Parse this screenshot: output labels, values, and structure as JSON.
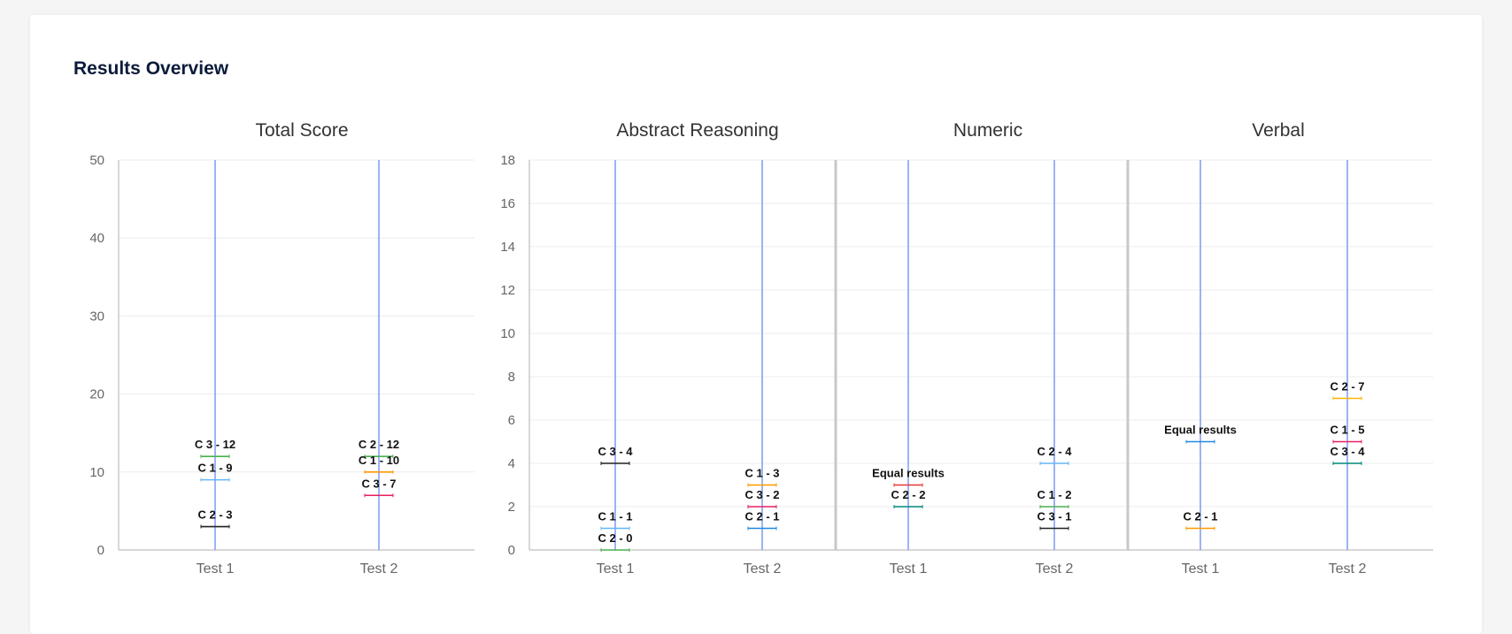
{
  "page": {
    "title": "Results Overview"
  },
  "chart_data": [
    {
      "id": "total",
      "type": "scatter",
      "title": "Total Score",
      "categories": [
        "Test 1",
        "Test 2"
      ],
      "ylim": [
        0,
        50
      ],
      "yticks": [
        0,
        10,
        20,
        30,
        40,
        50
      ],
      "grid": true,
      "points": [
        {
          "x": "Test 1",
          "y": 12,
          "label": "C 3 - 12",
          "color": "#4caf50"
        },
        {
          "x": "Test 1",
          "y": 9,
          "label": "C 1 - 9",
          "color": "#64b5f6"
        },
        {
          "x": "Test 1",
          "y": 3,
          "label": "C 2 - 3",
          "color": "#212121"
        },
        {
          "x": "Test 2",
          "y": 12,
          "label": "C 2 - 12",
          "color": "#4caf50"
        },
        {
          "x": "Test 2",
          "y": 10,
          "label": "C 1 - 10",
          "color": "#ff9800"
        },
        {
          "x": "Test 2",
          "y": 7,
          "label": "C 3 - 7",
          "color": "#e91e63"
        }
      ]
    },
    {
      "id": "abstract",
      "type": "scatter",
      "title": "Abstract Reasoning",
      "categories": [
        "Test 1",
        "Test 2"
      ],
      "ylim": [
        0,
        18
      ],
      "yticks": [
        0,
        2,
        4,
        6,
        8,
        10,
        12,
        14,
        16,
        18
      ],
      "grid": true,
      "points": [
        {
          "x": "Test 1",
          "y": 4,
          "label": "C 3 - 4",
          "color": "#212121"
        },
        {
          "x": "Test 1",
          "y": 1,
          "label": "C 1 - 1",
          "color": "#64b5f6"
        },
        {
          "x": "Test 1",
          "y": 0,
          "label": "C 2 - 0",
          "color": "#4caf50"
        },
        {
          "x": "Test 2",
          "y": 3,
          "label": "C 1 - 3",
          "color": "#ff9800"
        },
        {
          "x": "Test 2",
          "y": 2,
          "label": "C 3 - 2",
          "color": "#e91e63"
        },
        {
          "x": "Test 2",
          "y": 1,
          "label": "C 2 - 1",
          "color": "#1e88e5"
        }
      ]
    },
    {
      "id": "numeric",
      "type": "scatter",
      "title": "Numeric",
      "categories": [
        "Test 1",
        "Test 2"
      ],
      "ylim": [
        0,
        18
      ],
      "yticks": [
        0,
        2,
        4,
        6,
        8,
        10,
        12,
        14,
        16,
        18
      ],
      "grid": true,
      "points": [
        {
          "x": "Test 1",
          "y": 3,
          "label": "Equal results",
          "color": "#e53935"
        },
        {
          "x": "Test 1",
          "y": 2,
          "label": "C 2 - 2",
          "color": "#00897b"
        },
        {
          "x": "Test 2",
          "y": 4,
          "label": "C 2 - 4",
          "color": "#64b5f6"
        },
        {
          "x": "Test 2",
          "y": 2,
          "label": "C 1 - 2",
          "color": "#4caf50"
        },
        {
          "x": "Test 2",
          "y": 1,
          "label": "C 3 - 1",
          "color": "#212121"
        }
      ]
    },
    {
      "id": "verbal",
      "type": "scatter",
      "title": "Verbal",
      "categories": [
        "Test 1",
        "Test 2"
      ],
      "ylim": [
        0,
        18
      ],
      "yticks": [
        0,
        2,
        4,
        6,
        8,
        10,
        12,
        14,
        16,
        18
      ],
      "grid": true,
      "points": [
        {
          "x": "Test 1",
          "y": 5,
          "label": "Equal results",
          "color": "#1e88e5"
        },
        {
          "x": "Test 1",
          "y": 1,
          "label": "C 2 - 1",
          "color": "#ff9800"
        },
        {
          "x": "Test 2",
          "y": 7,
          "label": "C 2 - 7",
          "color": "#ffb300"
        },
        {
          "x": "Test 2",
          "y": 5,
          "label": "C 1 - 5",
          "color": "#e91e63"
        },
        {
          "x": "Test 2",
          "y": 4,
          "label": "C 3 - 4",
          "color": "#00897b"
        }
      ]
    }
  ],
  "colors": {
    "test_line": "#7b9cf0",
    "grid": "#ececec",
    "axis": "#b0b0b0",
    "separator": "#c8c8c8"
  }
}
